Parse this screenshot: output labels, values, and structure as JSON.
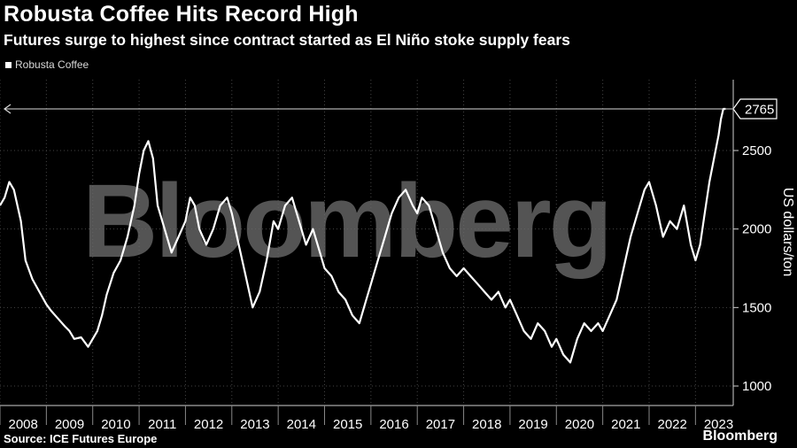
{
  "header": {
    "title": "Robusta Coffee Hits Record High",
    "subtitle": "Futures surge to highest since contract started as El Niño stoke supply fears"
  },
  "footer": {
    "source": "Source: ICE Futures Europe",
    "brand": "Bloomberg",
    "watermark": "Bloomberg"
  },
  "colors": {
    "background": "#000000",
    "line": "#ffffff",
    "grid": "#444444"
  },
  "chart_data": {
    "type": "line",
    "ylabel": "US dollars/ton",
    "ylim": [
      950,
      2900
    ],
    "xlim": [
      2008.0,
      2023.7
    ],
    "yticks": [
      1000,
      1500,
      2000,
      2500
    ],
    "xticks": [
      "2008",
      "2009",
      "2010",
      "2011",
      "2012",
      "2013",
      "2014",
      "2015",
      "2016",
      "2017",
      "2018",
      "2019",
      "2020",
      "2021",
      "2022",
      "2023"
    ],
    "legend": {
      "position": "top-left",
      "entries": [
        "Robusta Coffee"
      ]
    },
    "annotation": {
      "label": "2765",
      "value": 2765
    },
    "series": [
      {
        "name": "Robusta Coffee",
        "x": [
          2008.0,
          2008.1,
          2008.2,
          2008.3,
          2008.45,
          2008.55,
          2008.7,
          2008.85,
          2009.0,
          2009.1,
          2009.25,
          2009.4,
          2009.5,
          2009.6,
          2009.75,
          2009.9,
          2010.0,
          2010.1,
          2010.2,
          2010.3,
          2010.45,
          2010.6,
          2010.75,
          2010.9,
          2011.0,
          2011.1,
          2011.2,
          2011.3,
          2011.4,
          2011.55,
          2011.7,
          2011.85,
          2012.0,
          2012.1,
          2012.2,
          2012.3,
          2012.45,
          2012.6,
          2012.75,
          2012.9,
          2013.0,
          2013.15,
          2013.3,
          2013.45,
          2013.6,
          2013.75,
          2013.9,
          2014.0,
          2014.15,
          2014.3,
          2014.45,
          2014.6,
          2014.75,
          2014.9,
          2015.0,
          2015.15,
          2015.3,
          2015.45,
          2015.6,
          2015.75,
          2015.9,
          2016.0,
          2016.15,
          2016.3,
          2016.45,
          2016.6,
          2016.75,
          2016.9,
          2017.0,
          2017.1,
          2017.25,
          2017.4,
          2017.55,
          2017.7,
          2017.85,
          2018.0,
          2018.15,
          2018.3,
          2018.45,
          2018.6,
          2018.75,
          2018.9,
          2019.0,
          2019.15,
          2019.3,
          2019.45,
          2019.6,
          2019.75,
          2019.9,
          2020.0,
          2020.15,
          2020.3,
          2020.45,
          2020.6,
          2020.75,
          2020.9,
          2021.0,
          2021.15,
          2021.3,
          2021.45,
          2021.6,
          2021.75,
          2021.9,
          2022.0,
          2022.15,
          2022.3,
          2022.45,
          2022.6,
          2022.75,
          2022.9,
          2023.0,
          2023.1,
          2023.2,
          2023.3,
          2023.4,
          2023.5,
          2023.55,
          2023.6,
          2023.65
        ],
        "values": [
          2150,
          2200,
          2300,
          2250,
          2050,
          1800,
          1680,
          1600,
          1520,
          1480,
          1430,
          1380,
          1350,
          1300,
          1310,
          1250,
          1300,
          1350,
          1450,
          1580,
          1720,
          1800,
          1950,
          2150,
          2350,
          2500,
          2560,
          2450,
          2150,
          2000,
          1850,
          1950,
          2050,
          2200,
          2150,
          2000,
          1900,
          2000,
          2150,
          2200,
          2100,
          1900,
          1700,
          1500,
          1600,
          1800,
          2050,
          2000,
          2150,
          2200,
          2050,
          1900,
          2000,
          1850,
          1750,
          1700,
          1600,
          1550,
          1450,
          1400,
          1550,
          1650,
          1800,
          1950,
          2100,
          2200,
          2250,
          2150,
          2100,
          2200,
          2150,
          2000,
          1850,
          1750,
          1700,
          1750,
          1700,
          1650,
          1600,
          1550,
          1600,
          1500,
          1550,
          1450,
          1350,
          1300,
          1400,
          1350,
          1250,
          1300,
          1200,
          1150,
          1300,
          1400,
          1350,
          1400,
          1350,
          1450,
          1550,
          1750,
          1950,
          2100,
          2250,
          2300,
          2150,
          1950,
          2050,
          2000,
          2150,
          1900,
          1800,
          1900,
          2100,
          2300,
          2450,
          2600,
          2700,
          2765,
          2765
        ]
      }
    ]
  }
}
